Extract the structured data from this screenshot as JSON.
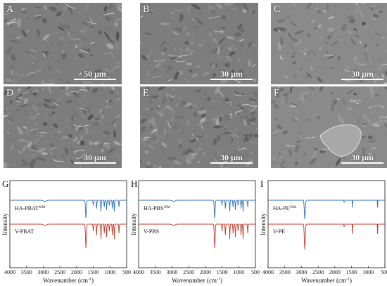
{
  "sem_panels": [
    {
      "letter": "A",
      "scale": "50 μm"
    },
    {
      "letter": "B",
      "scale": "30 μm"
    },
    {
      "letter": "C",
      "scale": "30 μm"
    },
    {
      "letter": "D",
      "scale": "30 μm"
    },
    {
      "letter": "E",
      "scale": "30 μm"
    },
    {
      "letter": "F",
      "scale": "30 μm"
    }
  ],
  "colors": {
    "blue_series": "#2e6eb5",
    "red_series": "#c0392b"
  },
  "chart_data": [
    {
      "type": "line",
      "panel_letter": "G",
      "xlabel": "Wavenumber (cm",
      "xlabel_sup": "-1",
      "xlabel_end": ")",
      "ylabel": "Intensity",
      "xlim": [
        4000,
        500
      ],
      "x_ticks": [
        "4000",
        "3500",
        "3000",
        "2500",
        "2000",
        "1500",
        "1000",
        "500"
      ],
      "series": [
        {
          "name": "HA-PBAT",
          "name_sup": "30M",
          "color": "#2e6eb5"
        },
        {
          "name": "V-PBAT",
          "name_sup": "",
          "color": "#c0392b"
        }
      ]
    },
    {
      "type": "line",
      "panel_letter": "H",
      "xlabel": "Wavenumber (cm",
      "xlabel_sup": "-1",
      "xlabel_end": ")",
      "ylabel": "Intensity",
      "xlim": [
        4000,
        500
      ],
      "x_ticks": [
        "4000",
        "3500",
        "3000",
        "2500",
        "2000",
        "1500",
        "1000",
        "500"
      ],
      "series": [
        {
          "name": "HA-PBS",
          "name_sup": "30M",
          "color": "#2e6eb5"
        },
        {
          "name": "V-PBS",
          "name_sup": "",
          "color": "#c0392b"
        }
      ]
    },
    {
      "type": "line",
      "panel_letter": "I",
      "xlabel": "Wavenumber (cm",
      "xlabel_sup": "-1",
      "xlabel_end": ")",
      "ylabel": "Intensity",
      "xlim": [
        4000,
        500
      ],
      "x_ticks": [
        "4000",
        "3500",
        "3000",
        "2500",
        "2000",
        "1500",
        "1000",
        "500"
      ],
      "series": [
        {
          "name": "HA-PE",
          "name_sup": "30M",
          "color": "#2e6eb5"
        },
        {
          "name": "V-PE",
          "name_sup": "",
          "color": "#c0392b"
        }
      ]
    }
  ]
}
